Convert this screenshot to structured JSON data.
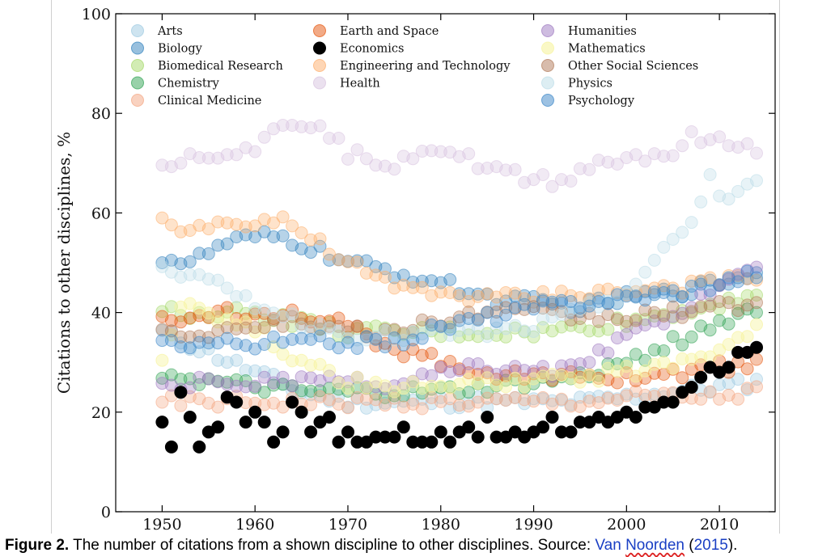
{
  "chart_data": {
    "type": "scatter",
    "title": "",
    "xlabel": "",
    "ylabel": "Citations to other disciplines, %",
    "xlim": [
      1945,
      2016
    ],
    "ylim": [
      0,
      100
    ],
    "x_ticks": [
      1950,
      1960,
      1970,
      1980,
      1990,
      2000,
      2010
    ],
    "y_ticks": [
      0,
      20,
      40,
      60,
      80,
      100
    ],
    "grid": false,
    "legend_position": "top",
    "series": [
      {
        "name": "Arts",
        "color": "#9ecae1",
        "alpha": 0.35,
        "anchors": [
          [
            1950,
            36
          ],
          [
            1955,
            32
          ],
          [
            1960,
            28
          ],
          [
            1965,
            24
          ],
          [
            1970,
            22
          ],
          [
            1975,
            22
          ],
          [
            1980,
            22
          ],
          [
            1985,
            22
          ],
          [
            1990,
            22
          ],
          [
            1995,
            22
          ],
          [
            2000,
            23
          ],
          [
            2005,
            24
          ],
          [
            2010,
            25
          ],
          [
            2014,
            26
          ]
        ]
      },
      {
        "name": "Biology",
        "color": "#3182bd",
        "alpha": 0.35,
        "anchors": [
          [
            1950,
            51
          ],
          [
            1953,
            50
          ],
          [
            1957,
            54
          ],
          [
            1960,
            55
          ],
          [
            1963,
            55
          ],
          [
            1966,
            53
          ],
          [
            1970,
            50
          ],
          [
            1975,
            48
          ],
          [
            1980,
            46
          ],
          [
            1985,
            43
          ],
          [
            1990,
            42
          ],
          [
            1995,
            41
          ],
          [
            2000,
            43
          ],
          [
            2005,
            44
          ],
          [
            2010,
            46
          ],
          [
            2014,
            48
          ]
        ]
      },
      {
        "name": "Biomedical Research",
        "color": "#a6d96a",
        "alpha": 0.35,
        "anchors": [
          [
            1950,
            40
          ],
          [
            1955,
            40
          ],
          [
            1960,
            40
          ],
          [
            1965,
            38
          ],
          [
            1970,
            36
          ],
          [
            1975,
            36
          ],
          [
            1980,
            36
          ],
          [
            1985,
            36
          ],
          [
            1990,
            36
          ],
          [
            1995,
            37
          ],
          [
            2000,
            38
          ],
          [
            2005,
            40
          ],
          [
            2010,
            42
          ],
          [
            2014,
            44
          ]
        ]
      },
      {
        "name": "Chemistry",
        "color": "#31a354",
        "alpha": 0.35,
        "anchors": [
          [
            1950,
            28
          ],
          [
            1955,
            26
          ],
          [
            1960,
            25
          ],
          [
            1965,
            24
          ],
          [
            1970,
            24
          ],
          [
            1975,
            24
          ],
          [
            1980,
            24
          ],
          [
            1985,
            25
          ],
          [
            1990,
            26
          ],
          [
            1995,
            27
          ],
          [
            2000,
            30
          ],
          [
            2005,
            34
          ],
          [
            2010,
            38
          ],
          [
            2014,
            41
          ]
        ]
      },
      {
        "name": "Clinical Medicine",
        "color": "#f4a582",
        "alpha": 0.35,
        "anchors": [
          [
            1950,
            22
          ],
          [
            1955,
            22
          ],
          [
            1960,
            22
          ],
          [
            1965,
            22
          ],
          [
            1970,
            22
          ],
          [
            1975,
            22
          ],
          [
            1980,
            22
          ],
          [
            1985,
            22
          ],
          [
            1990,
            22
          ],
          [
            1995,
            22
          ],
          [
            2000,
            23
          ],
          [
            2005,
            23
          ],
          [
            2010,
            23
          ],
          [
            2014,
            24
          ]
        ]
      },
      {
        "name": "Earth and Space",
        "color": "#e6550d",
        "alpha": 0.35,
        "anchors": [
          [
            1950,
            38
          ],
          [
            1955,
            40
          ],
          [
            1960,
            40
          ],
          [
            1965,
            40
          ],
          [
            1970,
            37
          ],
          [
            1975,
            33
          ],
          [
            1980,
            30
          ],
          [
            1985,
            28
          ],
          [
            1990,
            27
          ],
          [
            1995,
            27
          ],
          [
            2000,
            27
          ],
          [
            2005,
            28
          ],
          [
            2010,
            29
          ],
          [
            2014,
            30
          ]
        ]
      },
      {
        "name": "Economics",
        "color": "#000000",
        "alpha": 1,
        "points": [
          [
            1950,
            18
          ],
          [
            1951,
            13
          ],
          [
            1952,
            24
          ],
          [
            1953,
            19
          ],
          [
            1954,
            13
          ],
          [
            1955,
            16
          ],
          [
            1956,
            17
          ],
          [
            1957,
            23
          ],
          [
            1958,
            22
          ],
          [
            1959,
            18
          ],
          [
            1960,
            20
          ],
          [
            1961,
            18
          ],
          [
            1962,
            14
          ],
          [
            1963,
            16
          ],
          [
            1964,
            22
          ],
          [
            1965,
            20
          ],
          [
            1966,
            16
          ],
          [
            1967,
            18
          ],
          [
            1968,
            19
          ],
          [
            1969,
            14
          ],
          [
            1970,
            16
          ],
          [
            1971,
            14
          ],
          [
            1972,
            14
          ],
          [
            1973,
            15
          ],
          [
            1974,
            15
          ],
          [
            1975,
            15
          ],
          [
            1976,
            17
          ],
          [
            1977,
            14
          ],
          [
            1978,
            14
          ],
          [
            1979,
            14
          ],
          [
            1980,
            16
          ],
          [
            1981,
            14
          ],
          [
            1982,
            16
          ],
          [
            1983,
            17
          ],
          [
            1984,
            15
          ],
          [
            1985,
            19
          ],
          [
            1986,
            15
          ],
          [
            1987,
            15
          ],
          [
            1988,
            16
          ],
          [
            1989,
            15
          ],
          [
            1990,
            16
          ],
          [
            1991,
            17
          ],
          [
            1992,
            19
          ],
          [
            1993,
            16
          ],
          [
            1994,
            16
          ],
          [
            1995,
            18
          ],
          [
            1996,
            18
          ],
          [
            1997,
            19
          ],
          [
            1998,
            18
          ],
          [
            1999,
            19
          ],
          [
            2000,
            20
          ],
          [
            2001,
            19
          ],
          [
            2002,
            21
          ],
          [
            2003,
            21
          ],
          [
            2004,
            22
          ],
          [
            2005,
            22
          ],
          [
            2006,
            24
          ],
          [
            2007,
            25
          ],
          [
            2008,
            27
          ],
          [
            2009,
            29
          ],
          [
            2010,
            28
          ],
          [
            2011,
            29
          ],
          [
            2012,
            32
          ],
          [
            2013,
            32
          ],
          [
            2014,
            33
          ]
        ]
      },
      {
        "name": "Engineering and Technology",
        "color": "#fdae6b",
        "alpha": 0.35,
        "anchors": [
          [
            1950,
            58
          ],
          [
            1952,
            57
          ],
          [
            1955,
            57
          ],
          [
            1957,
            59
          ],
          [
            1960,
            58
          ],
          [
            1963,
            59
          ],
          [
            1965,
            56
          ],
          [
            1970,
            50
          ],
          [
            1975,
            45
          ],
          [
            1980,
            44
          ],
          [
            1985,
            43
          ],
          [
            1990,
            43
          ],
          [
            1995,
            44
          ],
          [
            2000,
            44
          ],
          [
            2005,
            45
          ],
          [
            2010,
            46
          ],
          [
            2014,
            47
          ]
        ]
      },
      {
        "name": "Health",
        "color": "#d8c3e0",
        "alpha": 0.35,
        "anchors": [
          [
            1950,
            70
          ],
          [
            1955,
            72
          ],
          [
            1960,
            73
          ],
          [
            1962,
            76
          ],
          [
            1964,
            78
          ],
          [
            1967,
            78
          ],
          [
            1970,
            72
          ],
          [
            1975,
            70
          ],
          [
            1978,
            73
          ],
          [
            1980,
            73
          ],
          [
            1985,
            69
          ],
          [
            1990,
            67
          ],
          [
            1993,
            66
          ],
          [
            1995,
            69
          ],
          [
            2000,
            71
          ],
          [
            2005,
            72
          ],
          [
            2007,
            75
          ],
          [
            2010,
            74
          ],
          [
            2014,
            73
          ]
        ]
      },
      {
        "name": "Humanities",
        "color": "#9e79c1",
        "alpha": 0.35,
        "anchors": [
          [
            1950,
            25
          ],
          [
            1955,
            26
          ],
          [
            1960,
            26
          ],
          [
            1965,
            26
          ],
          [
            1970,
            26
          ],
          [
            1975,
            25
          ],
          [
            1980,
            28
          ],
          [
            1985,
            29
          ],
          [
            1990,
            28
          ],
          [
            1995,
            29
          ],
          [
            2000,
            35
          ],
          [
            2005,
            40
          ],
          [
            2010,
            45
          ],
          [
            2014,
            48
          ]
        ]
      },
      {
        "name": "Mathematics",
        "color": "#f7f3a0",
        "alpha": 0.45,
        "anchors": [
          [
            1950,
            31
          ],
          [
            1952,
            42
          ],
          [
            1955,
            40
          ],
          [
            1960,
            37
          ],
          [
            1965,
            30
          ],
          [
            1970,
            26
          ],
          [
            1975,
            25
          ],
          [
            1980,
            25
          ],
          [
            1985,
            26
          ],
          [
            1990,
            26
          ],
          [
            1995,
            27
          ],
          [
            2000,
            28
          ],
          [
            2005,
            30
          ],
          [
            2010,
            33
          ],
          [
            2014,
            37
          ]
        ]
      },
      {
        "name": "Other Social Sciences",
        "color": "#b27a5a",
        "alpha": 0.35,
        "anchors": [
          [
            1950,
            36
          ],
          [
            1955,
            36
          ],
          [
            1960,
            38
          ],
          [
            1965,
            38
          ],
          [
            1970,
            36
          ],
          [
            1975,
            36
          ],
          [
            1980,
            38
          ],
          [
            1985,
            40
          ],
          [
            1990,
            40
          ],
          [
            1995,
            39
          ],
          [
            2000,
            39
          ],
          [
            2005,
            40
          ],
          [
            2010,
            41
          ],
          [
            2014,
            42
          ]
        ]
      },
      {
        "name": "Physics",
        "color": "#bcdde8",
        "alpha": 0.35,
        "anchors": [
          [
            1950,
            50
          ],
          [
            1952,
            48
          ],
          [
            1955,
            46
          ],
          [
            1960,
            42
          ],
          [
            1965,
            38
          ],
          [
            1970,
            36
          ],
          [
            1975,
            35
          ],
          [
            1980,
            36
          ],
          [
            1985,
            36
          ],
          [
            1990,
            37
          ],
          [
            1995,
            40
          ],
          [
            2000,
            44
          ],
          [
            2004,
            52
          ],
          [
            2007,
            58
          ],
          [
            2009,
            68
          ],
          [
            2010,
            63
          ],
          [
            2012,
            64
          ],
          [
            2014,
            67
          ]
        ]
      },
      {
        "name": "Psychology",
        "color": "#3b86c8",
        "alpha": 0.35,
        "anchors": [
          [
            1950,
            34
          ],
          [
            1955,
            34
          ],
          [
            1960,
            34
          ],
          [
            1965,
            34
          ],
          [
            1970,
            34
          ],
          [
            1975,
            34
          ],
          [
            1980,
            37
          ],
          [
            1985,
            39
          ],
          [
            1990,
            41
          ],
          [
            1995,
            42
          ],
          [
            2000,
            43
          ],
          [
            2005,
            44
          ],
          [
            2010,
            46
          ],
          [
            2014,
            48
          ]
        ]
      }
    ]
  },
  "caption": {
    "label": "Figure 2.",
    "text": " The number of citations from a shown discipline to other disciplines. Source: ",
    "source_part1": "Van ",
    "source_part2": "Noorden",
    "source_year": "2015",
    "open_paren": " (",
    "close": ")."
  }
}
